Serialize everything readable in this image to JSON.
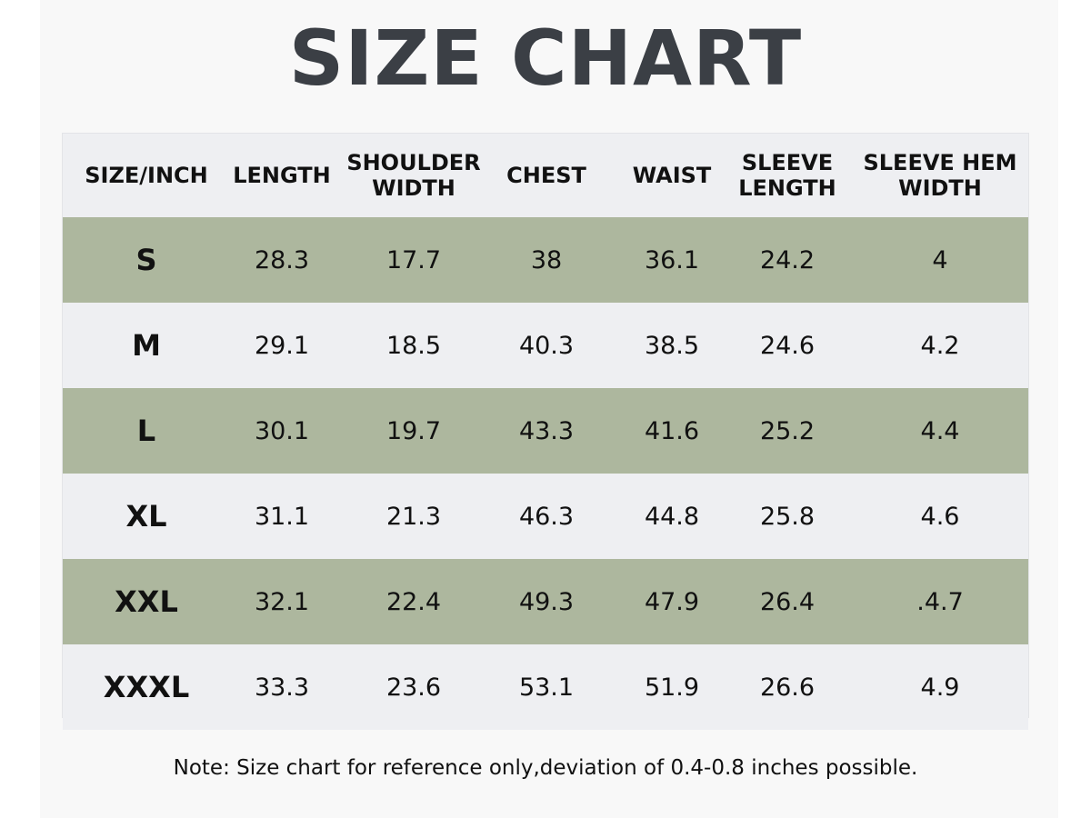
{
  "title": "SIZE CHART",
  "note": "Note: Size chart for reference only,deviation of 0.4-0.8 inches possible.",
  "colors": {
    "title": "#3b3f45",
    "row_alt": "#adb79e",
    "row_plain": "#eeeff2"
  },
  "chart_data": {
    "type": "table",
    "title": "SIZE CHART",
    "columns": [
      "SIZE/INCH",
      "LENGTH",
      "SHOULDER\nWIDTH",
      "CHEST",
      "WAIST",
      "SLEEVE\nLENGTH",
      "SLEEVE HEM\nWIDTH"
    ],
    "rows": [
      [
        "S",
        "28.3",
        "17.7",
        "38",
        "36.1",
        "24.2",
        "4"
      ],
      [
        "M",
        "29.1",
        "18.5",
        "40.3",
        "38.5",
        "24.6",
        "4.2"
      ],
      [
        "L",
        "30.1",
        "19.7",
        "43.3",
        "41.6",
        "25.2",
        "4.4"
      ],
      [
        "XL",
        "31.1",
        "21.3",
        "46.3",
        "44.8",
        "25.8",
        "4.6"
      ],
      [
        "XXL",
        "32.1",
        "22.4",
        "49.3",
        "47.9",
        "26.4",
        ".4.7"
      ],
      [
        "XXXL",
        "33.3",
        "23.6",
        "53.1",
        "51.9",
        "26.6",
        "4.9"
      ]
    ]
  }
}
